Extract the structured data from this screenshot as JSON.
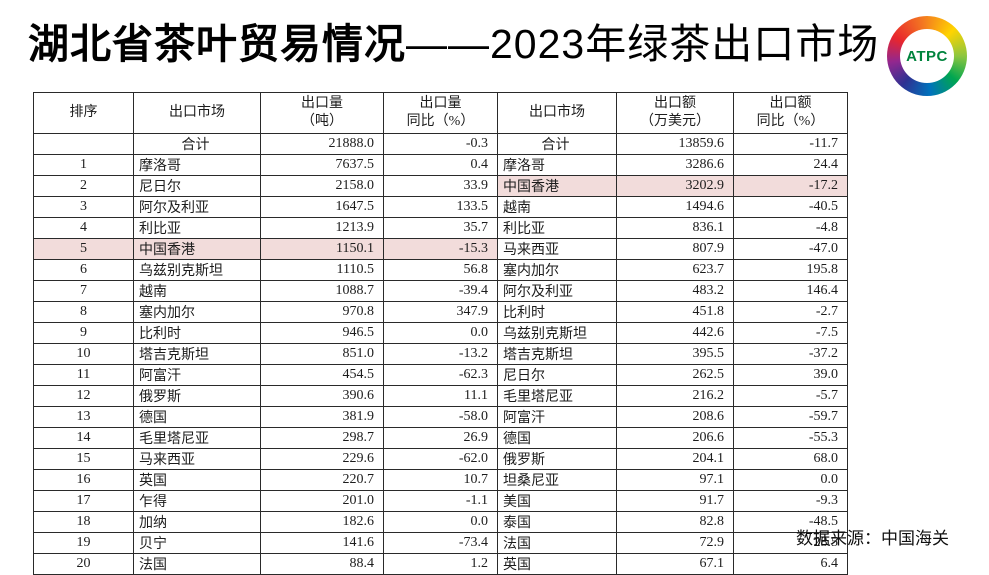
{
  "title": {
    "bold": "湖北省茶叶贸易情况",
    "light": "——2023年绿茶出口市场"
  },
  "logo": {
    "text": "ATPC"
  },
  "source": "数据来源：中国海关",
  "colors": {
    "highlight_pink": "#f2dcdb",
    "logo_green": "#00843d"
  },
  "table": {
    "total_label": "合计",
    "headers": {
      "rank": "排序",
      "market": "出口市场",
      "volume_line1": "出口量",
      "volume_line2": "（吨）",
      "volume_yoy_line1": "出口量",
      "volume_yoy_line2": "同比（%）",
      "market2": "出口市场",
      "value_line1": "出口额",
      "value_line2": "（万美元）",
      "value_yoy_line1": "出口额",
      "value_yoy_line2": "同比（%）"
    },
    "rows": [
      {
        "rank": "",
        "market": "合计",
        "volume": "21888.0",
        "volume_yoy": "-0.3",
        "market2": "合计",
        "value": "13859.6",
        "value_yoy": "-11.7",
        "hl_left": false,
        "hl_right": false
      },
      {
        "rank": "1",
        "market": "摩洛哥",
        "volume": "7637.5",
        "volume_yoy": "0.4",
        "market2": "摩洛哥",
        "value": "3286.6",
        "value_yoy": "24.4",
        "hl_left": false,
        "hl_right": false
      },
      {
        "rank": "2",
        "market": "尼日尔",
        "volume": "2158.0",
        "volume_yoy": "33.9",
        "market2": "中国香港",
        "value": "3202.9",
        "value_yoy": "-17.2",
        "hl_left": false,
        "hl_right": true
      },
      {
        "rank": "3",
        "market": "阿尔及利亚",
        "volume": "1647.5",
        "volume_yoy": "133.5",
        "market2": "越南",
        "value": "1494.6",
        "value_yoy": "-40.5",
        "hl_left": false,
        "hl_right": false
      },
      {
        "rank": "4",
        "market": "利比亚",
        "volume": "1213.9",
        "volume_yoy": "35.7",
        "market2": "利比亚",
        "value": "836.1",
        "value_yoy": "-4.8",
        "hl_left": false,
        "hl_right": false
      },
      {
        "rank": "5",
        "market": "中国香港",
        "volume": "1150.1",
        "volume_yoy": "-15.3",
        "market2": "马来西亚",
        "value": "807.9",
        "value_yoy": "-47.0",
        "hl_left": true,
        "hl_right": false
      },
      {
        "rank": "6",
        "market": "乌兹别克斯坦",
        "volume": "1110.5",
        "volume_yoy": "56.8",
        "market2": "塞内加尔",
        "value": "623.7",
        "value_yoy": "195.8",
        "hl_left": false,
        "hl_right": false
      },
      {
        "rank": "7",
        "market": "越南",
        "volume": "1088.7",
        "volume_yoy": "-39.4",
        "market2": "阿尔及利亚",
        "value": "483.2",
        "value_yoy": "146.4",
        "hl_left": false,
        "hl_right": false
      },
      {
        "rank": "8",
        "market": "塞内加尔",
        "volume": "970.8",
        "volume_yoy": "347.9",
        "market2": "比利时",
        "value": "451.8",
        "value_yoy": "-2.7",
        "hl_left": false,
        "hl_right": false
      },
      {
        "rank": "9",
        "market": "比利时",
        "volume": "946.5",
        "volume_yoy": "0.0",
        "market2": "乌兹别克斯坦",
        "value": "442.6",
        "value_yoy": "-7.5",
        "hl_left": false,
        "hl_right": false
      },
      {
        "rank": "10",
        "market": "塔吉克斯坦",
        "volume": "851.0",
        "volume_yoy": "-13.2",
        "market2": "塔吉克斯坦",
        "value": "395.5",
        "value_yoy": "-37.2",
        "hl_left": false,
        "hl_right": false
      },
      {
        "rank": "11",
        "market": "阿富汗",
        "volume": "454.5",
        "volume_yoy": "-62.3",
        "market2": "尼日尔",
        "value": "262.5",
        "value_yoy": "39.0",
        "hl_left": false,
        "hl_right": false
      },
      {
        "rank": "12",
        "market": "俄罗斯",
        "volume": "390.6",
        "volume_yoy": "11.1",
        "market2": "毛里塔尼亚",
        "value": "216.2",
        "value_yoy": "-5.7",
        "hl_left": false,
        "hl_right": false
      },
      {
        "rank": "13",
        "market": "德国",
        "volume": "381.9",
        "volume_yoy": "-58.0",
        "market2": "阿富汗",
        "value": "208.6",
        "value_yoy": "-59.7",
        "hl_left": false,
        "hl_right": false
      },
      {
        "rank": "14",
        "market": "毛里塔尼亚",
        "volume": "298.7",
        "volume_yoy": "26.9",
        "market2": "德国",
        "value": "206.6",
        "value_yoy": "-55.3",
        "hl_left": false,
        "hl_right": false
      },
      {
        "rank": "15",
        "market": "马来西亚",
        "volume": "229.6",
        "volume_yoy": "-62.0",
        "market2": "俄罗斯",
        "value": "204.1",
        "value_yoy": "68.0",
        "hl_left": false,
        "hl_right": false
      },
      {
        "rank": "16",
        "market": "英国",
        "volume": "220.7",
        "volume_yoy": "10.7",
        "market2": "坦桑尼亚",
        "value": "97.1",
        "value_yoy": "0.0",
        "hl_left": false,
        "hl_right": false
      },
      {
        "rank": "17",
        "market": "乍得",
        "volume": "201.0",
        "volume_yoy": "-1.1",
        "market2": "美国",
        "value": "91.7",
        "value_yoy": "-9.3",
        "hl_left": false,
        "hl_right": false
      },
      {
        "rank": "18",
        "market": "加纳",
        "volume": "182.6",
        "volume_yoy": "0.0",
        "market2": "泰国",
        "value": "82.8",
        "value_yoy": "-48.5",
        "hl_left": false,
        "hl_right": false
      },
      {
        "rank": "19",
        "market": "贝宁",
        "volume": "141.6",
        "volume_yoy": "-73.4",
        "market2": "法国",
        "value": "72.9",
        "value_yoy": "28.5",
        "hl_left": false,
        "hl_right": false
      },
      {
        "rank": "20",
        "market": "法国",
        "volume": "88.4",
        "volume_yoy": "1.2",
        "market2": "英国",
        "value": "67.1",
        "value_yoy": "6.4",
        "hl_left": false,
        "hl_right": false
      }
    ]
  }
}
